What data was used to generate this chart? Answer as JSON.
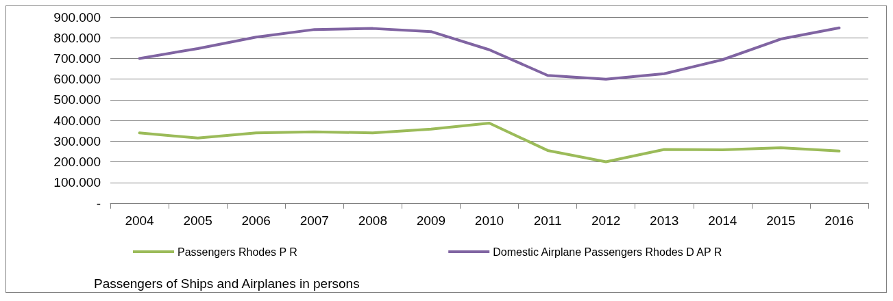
{
  "chart_data": {
    "type": "line",
    "categories": [
      "2004",
      "2005",
      "2006",
      "2007",
      "2008",
      "2009",
      "2010",
      "2011",
      "2012",
      "2013",
      "2014",
      "2015",
      "2016"
    ],
    "series": [
      {
        "name": "Passengers Rhodes P R",
        "color": "#9bbb59",
        "values": [
          340,
          315,
          340,
          345,
          340,
          358,
          387,
          255,
          200,
          260,
          258,
          268,
          252
        ]
      },
      {
        "name": "Domestic Airplane Passengers Rhodes D AP R",
        "color": "#8064a2",
        "values": [
          700,
          748,
          803,
          840,
          845,
          830,
          742,
          618,
          600,
          626,
          694,
          794,
          848
        ]
      }
    ],
    "ylim": [
      0,
      900
    ],
    "yticks": [
      {
        "value": 0,
        "label": "-"
      },
      {
        "value": 100,
        "label": "100.000"
      },
      {
        "value": 200,
        "label": "200.000"
      },
      {
        "value": 300,
        "label": "300.000"
      },
      {
        "value": 400,
        "label": "400.000"
      },
      {
        "value": 500,
        "label": "500.000"
      },
      {
        "value": 600,
        "label": "600.000"
      },
      {
        "value": 700,
        "label": "700.000"
      },
      {
        "value": 800,
        "label": "800.000"
      },
      {
        "value": 900,
        "label": "900.000"
      }
    ],
    "grid": "y",
    "legend": "bottom",
    "marker": "none",
    "line_style": "solid",
    "annotations": [
      "Passengers of Ships and Airplanes in persons"
    ]
  }
}
